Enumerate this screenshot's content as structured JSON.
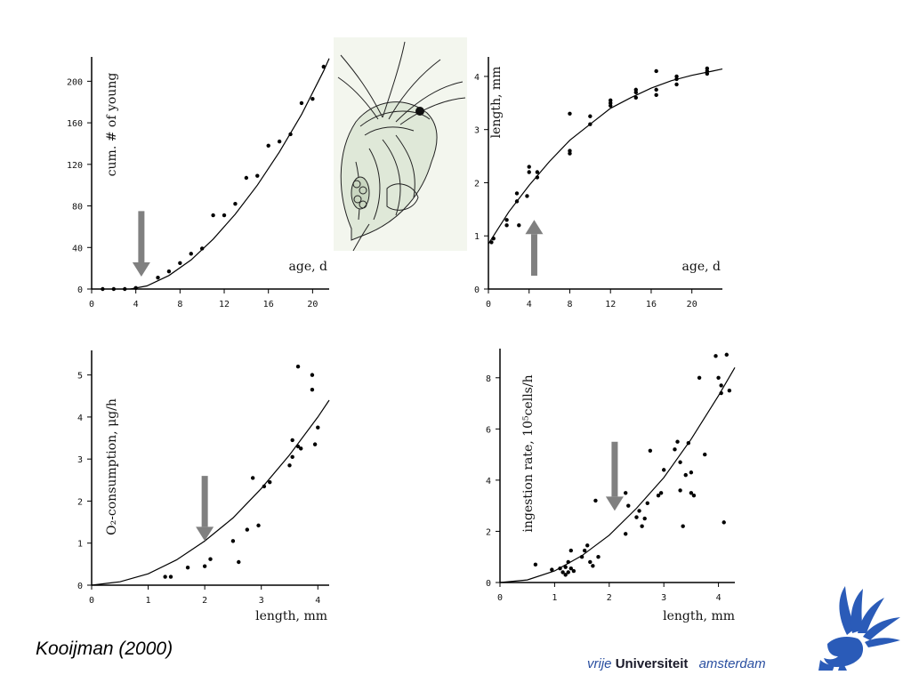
{
  "citation": "Kooijman (2000)",
  "university": {
    "vrije": "vrije",
    "universiteit": "Universiteit",
    "amsterdam": "amsterdam"
  },
  "colors": {
    "arrow": "#808080",
    "curve": "#000000",
    "points": "#000000",
    "logo": "#2a5bb8"
  },
  "icons": {
    "logo": "vu-griffin-logo-icon",
    "organism": "daphnia-drawing-icon"
  },
  "chart_data": [
    {
      "type": "scatter",
      "ylabel": "cum. # of young",
      "xlabel": "age, d",
      "xlim": [
        0,
        21.5
      ],
      "ylim": [
        0,
        220
      ],
      "xticks": [
        "0",
        "4",
        "8",
        "12",
        "16",
        "20"
      ],
      "yticks": [
        "0",
        "40",
        "80",
        "120",
        "160",
        "200"
      ],
      "series": [
        {
          "points": [
            [
              1,
              0
            ],
            [
              2,
              0
            ],
            [
              3,
              0
            ],
            [
              4,
              1
            ],
            [
              6,
              11
            ],
            [
              7,
              17
            ],
            [
              8,
              25
            ],
            [
              9,
              34
            ],
            [
              10,
              39
            ],
            [
              11,
              71
            ],
            [
              12,
              71
            ],
            [
              13,
              82
            ],
            [
              14,
              107
            ],
            [
              15,
              109
            ],
            [
              16,
              138
            ],
            [
              17,
              142
            ],
            [
              18,
              149
            ],
            [
              19,
              179
            ],
            [
              20,
              183
            ],
            [
              21,
              214
            ]
          ]
        }
      ],
      "fit": [
        [
          3.5,
          0
        ],
        [
          5,
          3
        ],
        [
          7,
          13
        ],
        [
          9,
          28
        ],
        [
          11,
          48
        ],
        [
          13,
          72
        ],
        [
          15,
          100
        ],
        [
          17,
          132
        ],
        [
          19,
          168
        ],
        [
          21,
          210
        ],
        [
          21.5,
          222
        ]
      ],
      "arrow": {
        "x": 4.5,
        "y_from": 75,
        "y_to": 12,
        "direction": "down"
      }
    },
    {
      "type": "scatter",
      "ylabel": "length, mm",
      "xlabel": "age, d",
      "xlim": [
        0,
        23
      ],
      "ylim": [
        0,
        4.3
      ],
      "xticks": [
        "0",
        "4",
        "8",
        "12",
        "16",
        "20"
      ],
      "yticks": [
        "0",
        "1",
        "2",
        "3",
        "4"
      ],
      "series": [
        {
          "points": [
            [
              0.3,
              0.88
            ],
            [
              0.5,
              0.95
            ],
            [
              1.8,
              1.2
            ],
            [
              1.8,
              1.3
            ],
            [
              2.8,
              1.65
            ],
            [
              2.8,
              1.8
            ],
            [
              3,
              1.2
            ],
            [
              3.8,
              1.75
            ],
            [
              4,
              2.3
            ],
            [
              4,
              2.2
            ],
            [
              4.8,
              2.2
            ],
            [
              4.8,
              2.1
            ],
            [
              8,
              3.3
            ],
            [
              8,
              2.6
            ],
            [
              8,
              2.55
            ],
            [
              10,
              3.25
            ],
            [
              10,
              3.1
            ],
            [
              12,
              3.45
            ],
            [
              12,
              3.5
            ],
            [
              12,
              3.55
            ],
            [
              14.5,
              3.6
            ],
            [
              14.5,
              3.7
            ],
            [
              14.5,
              3.75
            ],
            [
              16.5,
              3.65
            ],
            [
              16.5,
              3.75
            ],
            [
              16.5,
              4.1
            ],
            [
              18.5,
              3.85
            ],
            [
              18.5,
              3.95
            ],
            [
              18.5,
              4.0
            ],
            [
              21.5,
              4.05
            ],
            [
              21.5,
              4.1
            ],
            [
              21.5,
              4.15
            ]
          ]
        }
      ],
      "fit": [
        [
          0,
          0.85
        ],
        [
          2,
          1.45
        ],
        [
          4,
          1.95
        ],
        [
          6,
          2.4
        ],
        [
          8,
          2.8
        ],
        [
          10,
          3.1
        ],
        [
          12,
          3.4
        ],
        [
          14,
          3.6
        ],
        [
          16,
          3.78
        ],
        [
          18,
          3.92
        ],
        [
          20,
          4.02
        ],
        [
          22,
          4.1
        ],
        [
          23,
          4.14
        ]
      ],
      "arrow": {
        "x": 4.5,
        "y_from": 0.25,
        "y_to": 1.3,
        "direction": "up"
      }
    },
    {
      "type": "scatter",
      "ylabel": "O₂-consumption, μg/h",
      "xlabel": "length, mm",
      "xlim": [
        0,
        4.2
      ],
      "ylim": [
        0,
        5.5
      ],
      "xticks": [
        "0",
        "1",
        "2",
        "3",
        "4"
      ],
      "yticks": [
        "0",
        "1",
        "2",
        "3",
        "4",
        "5"
      ],
      "series": [
        {
          "points": [
            [
              1.3,
              0.2
            ],
            [
              1.4,
              0.2
            ],
            [
              1.7,
              0.42
            ],
            [
              2,
              0.45
            ],
            [
              2.1,
              0.62
            ],
            [
              2.5,
              1.05
            ],
            [
              2.6,
              0.55
            ],
            [
              2.75,
              1.32
            ],
            [
              2.85,
              2.55
            ],
            [
              2.95,
              1.42
            ],
            [
              3.05,
              2.35
            ],
            [
              3.15,
              2.45
            ],
            [
              3.5,
              2.85
            ],
            [
              3.55,
              3.05
            ],
            [
              3.55,
              3.45
            ],
            [
              3.65,
              3.3
            ],
            [
              3.7,
              3.25
            ],
            [
              3.65,
              5.2
            ],
            [
              3.9,
              4.65
            ],
            [
              3.9,
              5.0
            ],
            [
              3.95,
              3.35
            ],
            [
              4.0,
              3.75
            ]
          ]
        }
      ],
      "fit": [
        [
          0,
          0
        ],
        [
          0.5,
          0.08
        ],
        [
          1,
          0.27
        ],
        [
          1.5,
          0.6
        ],
        [
          2,
          1.05
        ],
        [
          2.5,
          1.6
        ],
        [
          3,
          2.3
        ],
        [
          3.5,
          3.1
        ],
        [
          4,
          4.0
        ],
        [
          4.2,
          4.4
        ]
      ],
      "arrow": {
        "x": 2.0,
        "y_from": 2.6,
        "y_to": 1.05,
        "direction": "down"
      }
    },
    {
      "type": "scatter",
      "ylabel": "ingestion rate, 10⁵cells/h",
      "xlabel": "length, mm",
      "xlim": [
        0,
        4.3
      ],
      "ylim": [
        0,
        9
      ],
      "xticks": [
        "0",
        "1",
        "2",
        "3",
        "4"
      ],
      "yticks": [
        "0",
        "2",
        "4",
        "6",
        "8"
      ],
      "series": [
        {
          "points": [
            [
              0.65,
              0.7
            ],
            [
              0.95,
              0.5
            ],
            [
              1.1,
              0.55
            ],
            [
              1.15,
              0.4
            ],
            [
              1.2,
              0.6
            ],
            [
              1.2,
              0.3
            ],
            [
              1.25,
              0.8
            ],
            [
              1.25,
              0.4
            ],
            [
              1.3,
              1.25
            ],
            [
              1.3,
              0.55
            ],
            [
              1.35,
              0.45
            ],
            [
              1.5,
              1.0
            ],
            [
              1.55,
              1.25
            ],
            [
              1.6,
              1.45
            ],
            [
              1.65,
              0.8
            ],
            [
              1.7,
              0.65
            ],
            [
              1.75,
              3.2
            ],
            [
              1.8,
              1.0
            ],
            [
              2.3,
              1.9
            ],
            [
              2.3,
              3.5
            ],
            [
              2.35,
              3.0
            ],
            [
              2.5,
              2.55
            ],
            [
              2.55,
              2.8
            ],
            [
              2.6,
              2.2
            ],
            [
              2.65,
              2.5
            ],
            [
              2.7,
              3.1
            ],
            [
              2.75,
              5.15
            ],
            [
              2.9,
              3.4
            ],
            [
              2.95,
              3.5
            ],
            [
              3.0,
              4.4
            ],
            [
              3.2,
              5.2
            ],
            [
              3.25,
              5.5
            ],
            [
              3.3,
              4.7
            ],
            [
              3.3,
              3.6
            ],
            [
              3.35,
              2.2
            ],
            [
              3.4,
              4.2
            ],
            [
              3.45,
              5.45
            ],
            [
              3.5,
              4.3
            ],
            [
              3.5,
              3.5
            ],
            [
              3.55,
              3.4
            ],
            [
              3.65,
              8.0
            ],
            [
              3.75,
              5.0
            ],
            [
              3.95,
              8.85
            ],
            [
              4.0,
              8.0
            ],
            [
              4.05,
              7.7
            ],
            [
              4.05,
              7.4
            ],
            [
              4.1,
              2.35
            ],
            [
              4.15,
              8.9
            ],
            [
              4.2,
              7.5
            ]
          ]
        }
      ],
      "fit": [
        [
          0,
          0
        ],
        [
          0.5,
          0.1
        ],
        [
          1,
          0.45
        ],
        [
          1.5,
          1.05
        ],
        [
          2,
          1.85
        ],
        [
          2.5,
          2.9
        ],
        [
          3,
          4.1
        ],
        [
          3.5,
          5.6
        ],
        [
          4,
          7.3
        ],
        [
          4.3,
          8.4
        ]
      ],
      "arrow": {
        "x": 2.1,
        "y_from": 5.5,
        "y_to": 2.8,
        "direction": "down"
      }
    }
  ]
}
